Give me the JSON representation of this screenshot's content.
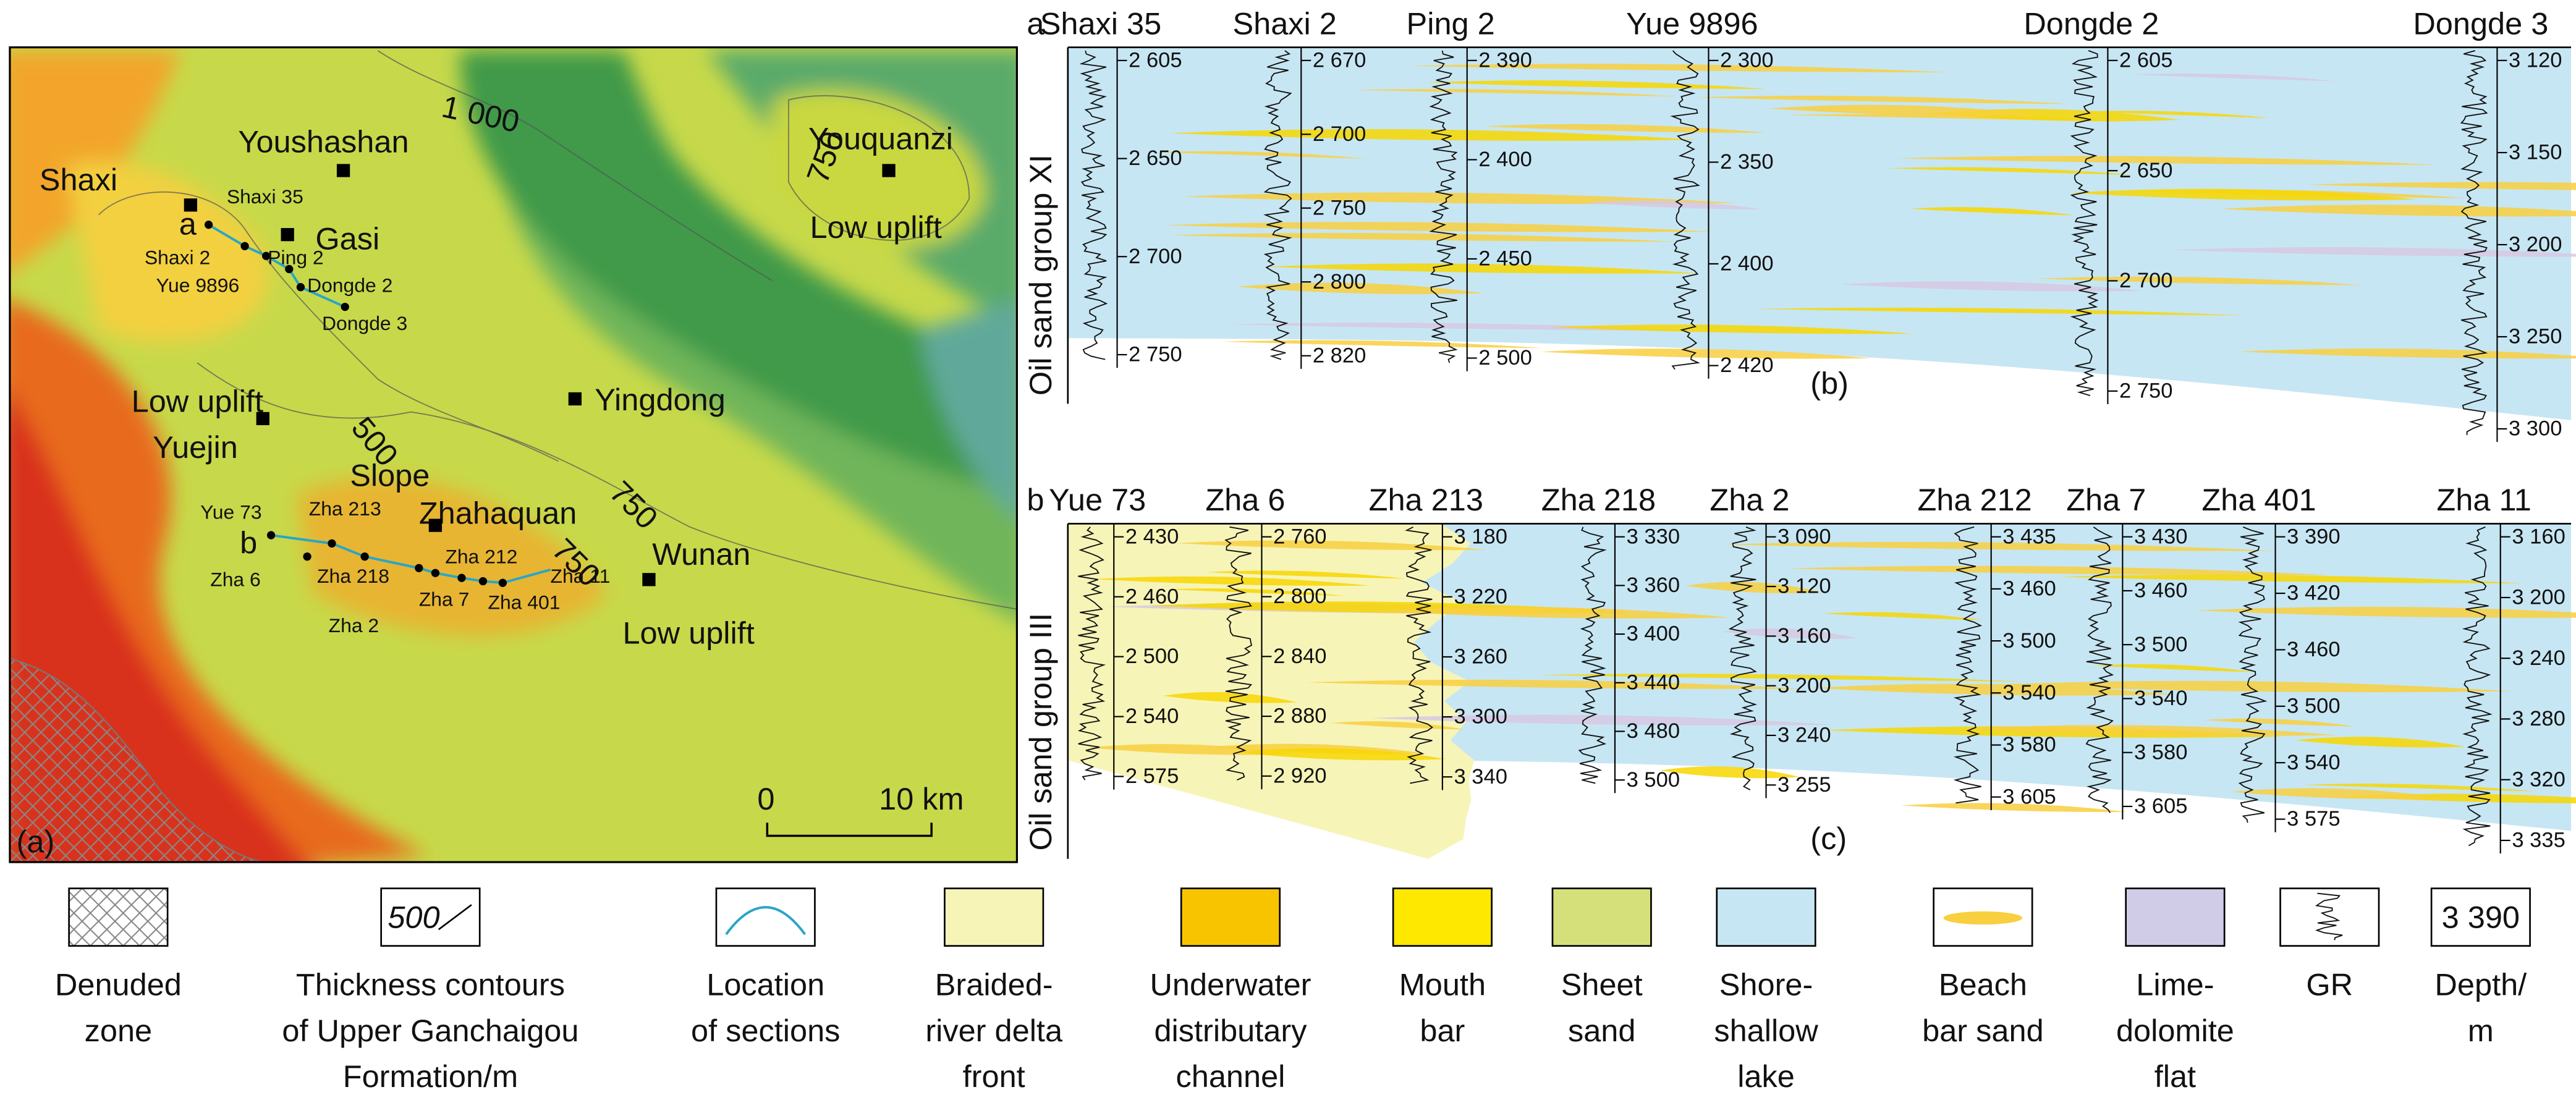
{
  "map": {
    "panel_label": "(a)",
    "places": [
      "Youshashan",
      "Shaxi",
      "Gasi",
      "Youquanzi",
      "Low uplift",
      "Low uplift",
      "Yuejin",
      "Yingdong",
      "Slope",
      "Zhahaquan",
      "Wunan",
      "Low uplift"
    ],
    "wells": [
      "Shaxi 35",
      "Shaxi 2",
      "Ping 2",
      "Yue 9896",
      "Dongde 2",
      "Dongde 3",
      "Yue 73",
      "Zha 213",
      "Zha 6",
      "Zha 218",
      "Zha 2",
      "Zha 212",
      "Zha 7",
      "Zha 401",
      "Zha 11"
    ],
    "section_marks": [
      "a",
      "b"
    ],
    "contours": [
      "1 000",
      "750",
      "500",
      "750",
      "750"
    ],
    "scale": [
      "0",
      "10 km"
    ]
  },
  "section_b": {
    "prefix": "a",
    "panel_label": "(b)",
    "axis_label": "Oil sand group XI",
    "wells": [
      {
        "name": "Shaxi 35",
        "depths": [
          "2 605",
          "2 650",
          "2 700",
          "2 750"
        ]
      },
      {
        "name": "Shaxi 2",
        "depths": [
          "2 670",
          "2 700",
          "2 750",
          "2 800",
          "2 820"
        ]
      },
      {
        "name": "Ping 2",
        "depths": [
          "2 390",
          "2 400",
          "2 450",
          "2 500"
        ]
      },
      {
        "name": "Yue 9896",
        "depths": [
          "2 300",
          "2 350",
          "2 400",
          "2 420"
        ]
      },
      {
        "name": "Dongde 2",
        "depths": [
          "2 605",
          "2 650",
          "2 700",
          "2 750"
        ]
      },
      {
        "name": "Dongde 3",
        "depths": [
          "3 120",
          "3 150",
          "3 200",
          "3 250",
          "3 300"
        ]
      }
    ]
  },
  "section_c": {
    "prefix": "b",
    "panel_label": "(c)",
    "axis_label": "Oil sand group III",
    "wells": [
      {
        "name": "Yue 73",
        "depths": [
          "2 430",
          "2 460",
          "2 500",
          "2 540",
          "2 575"
        ]
      },
      {
        "name": "Zha 6",
        "depths": [
          "2 760",
          "2 800",
          "2 840",
          "2 880",
          "2 920"
        ]
      },
      {
        "name": "Zha 213",
        "depths": [
          "3 180",
          "3 220",
          "3 260",
          "3 300",
          "3 340"
        ]
      },
      {
        "name": "Zha 218",
        "depths": [
          "3 330",
          "3 360",
          "3 400",
          "3 440",
          "3 480",
          "3 500"
        ]
      },
      {
        "name": "Zha 2",
        "depths": [
          "3 090",
          "3 120",
          "3 160",
          "3 200",
          "3 240",
          "3 255"
        ]
      },
      {
        "name": "Zha 212",
        "depths": [
          "3 435",
          "3 460",
          "3 500",
          "3 540",
          "3 580",
          "3 605"
        ]
      },
      {
        "name": "Zha 7",
        "depths": [
          "3 430",
          "3 460",
          "3 500",
          "3 540",
          "3 580",
          "3 605"
        ]
      },
      {
        "name": "Zha 401",
        "depths": [
          "3 390",
          "3 420",
          "3 460",
          "3 500",
          "3 540",
          "3 575"
        ]
      },
      {
        "name": "Zha 11",
        "depths": [
          "3 160",
          "3 200",
          "3 240",
          "3 280",
          "3 320",
          "3 335"
        ]
      }
    ]
  },
  "legend": {
    "items": [
      {
        "lines": [
          "Denuded",
          "zone"
        ]
      },
      {
        "symbol_text": "500",
        "lines": [
          "Thickness contours",
          "of Upper Ganchaigou",
          "Formation/m"
        ]
      },
      {
        "lines": [
          "Location",
          "of sections"
        ]
      },
      {
        "lines": [
          "Braided-",
          "river delta",
          "front"
        ]
      },
      {
        "lines": [
          "Underwater",
          "distributary",
          "channel"
        ]
      },
      {
        "lines": [
          "Mouth",
          "bar"
        ]
      },
      {
        "lines": [
          "Sheet",
          "sand"
        ]
      },
      {
        "lines": [
          "Shore-",
          "shallow",
          "lake"
        ]
      },
      {
        "lines": [
          "Beach",
          "bar sand"
        ]
      },
      {
        "lines": [
          "Lime-",
          "dolomite",
          "flat"
        ]
      },
      {
        "lines": [
          "GR"
        ]
      },
      {
        "symbol_text": "3 390",
        "lines": [
          "Depth/",
          "m"
        ]
      }
    ]
  }
}
